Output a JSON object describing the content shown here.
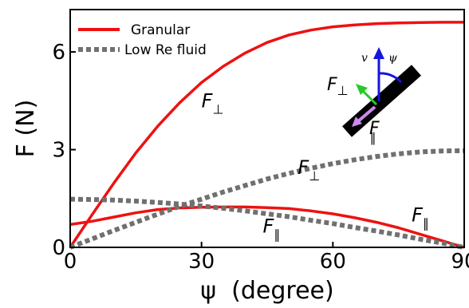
{
  "chart_data": {
    "type": "line",
    "xlabel": "ψ  (degree)",
    "ylabel": "F (N)",
    "xlim": [
      0,
      90
    ],
    "ylim": [
      0,
      7.3
    ],
    "xticks": [
      "0",
      "30",
      "60",
      "90"
    ],
    "yticks": [
      "0",
      "3",
      "6"
    ],
    "legend": {
      "placement": "top-left"
    },
    "series": [
      {
        "name": "Granular",
        "component": "perp",
        "color": "#ee1111",
        "style": "solid",
        "x": [
          0,
          5,
          10,
          15,
          20,
          25,
          30,
          35,
          40,
          45,
          50,
          55,
          60,
          65,
          70,
          75,
          80,
          85,
          90
        ],
        "y": [
          0.0,
          1.0,
          1.98,
          2.9,
          3.72,
          4.44,
          5.06,
          5.56,
          5.97,
          6.29,
          6.52,
          6.67,
          6.77,
          6.83,
          6.87,
          6.89,
          6.9,
          6.91,
          6.91
        ]
      },
      {
        "name": "Granular",
        "component": "par",
        "color": "#ee1111",
        "style": "solid",
        "x": [
          0,
          5,
          10,
          15,
          20,
          25,
          30,
          35,
          40,
          45,
          50,
          55,
          60,
          65,
          70,
          75,
          80,
          85,
          90
        ],
        "y": [
          0.7,
          0.8,
          0.93,
          1.06,
          1.16,
          1.21,
          1.23,
          1.24,
          1.24,
          1.22,
          1.19,
          1.12,
          1.03,
          0.91,
          0.77,
          0.6,
          0.4,
          0.2,
          0.0
        ]
      },
      {
        "name": "Low Re fluid",
        "component": "perp",
        "color": "#707070",
        "style": "dotted",
        "x": [
          0,
          5,
          10,
          15,
          20,
          25,
          30,
          35,
          40,
          45,
          50,
          55,
          60,
          65,
          70,
          75,
          80,
          85,
          90
        ],
        "y": [
          0.0,
          0.26,
          0.52,
          0.77,
          1.02,
          1.26,
          1.48,
          1.7,
          1.9,
          2.1,
          2.27,
          2.43,
          2.57,
          2.69,
          2.79,
          2.87,
          2.93,
          2.96,
          2.97
        ]
      },
      {
        "name": "Low Re fluid",
        "component": "par",
        "color": "#707070",
        "style": "dotted",
        "x": [
          0,
          5,
          10,
          15,
          20,
          25,
          30,
          35,
          40,
          45,
          50,
          55,
          60,
          65,
          70,
          75,
          80,
          85,
          90
        ],
        "y": [
          1.48,
          1.47,
          1.45,
          1.42,
          1.38,
          1.33,
          1.27,
          1.2,
          1.12,
          1.03,
          0.94,
          0.83,
          0.73,
          0.61,
          0.5,
          0.38,
          0.25,
          0.13,
          0.0
        ]
      }
    ],
    "annotations": [
      {
        "main": "F",
        "sub": "⊥",
        "x": 30,
        "y": 4.3
      },
      {
        "main": "F",
        "sub": "⊥",
        "x": 52,
        "y": 2.25
      },
      {
        "main": "F",
        "sub": "∥",
        "x": 44,
        "y": 0.45
      },
      {
        "main": "F",
        "sub": "∥",
        "x": 78,
        "y": 0.8
      }
    ],
    "inset": {
      "label_v": "v",
      "label_psi": "ψ",
      "label_fperp": "F",
      "label_fperp_sub": "⊥",
      "label_fpar": "F",
      "label_fpar_sub": "∥",
      "color_v": "#1515dd",
      "color_fperp": "#22cc22",
      "color_fpar": "#cc88ee",
      "color_rod": "#000000"
    }
  }
}
